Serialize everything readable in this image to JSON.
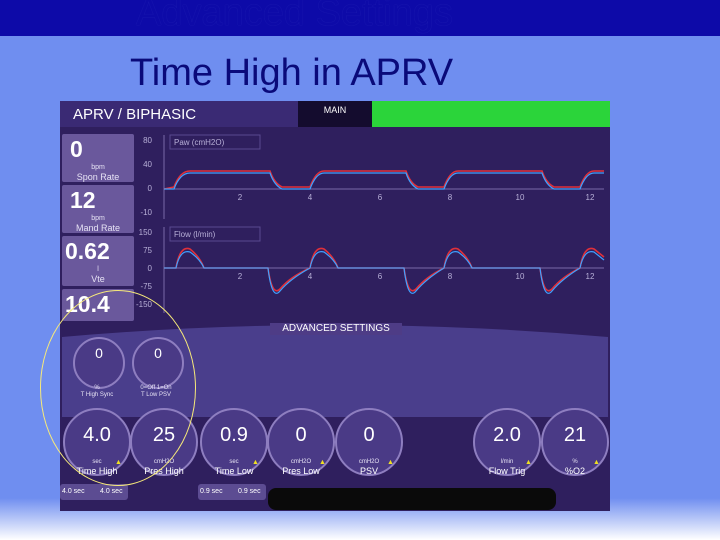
{
  "slide": {
    "title_line1": "Advanced Settings",
    "title_line2": "Time High in APRV"
  },
  "header": {
    "mode": "APRV / BIPHASIC",
    "main_button": "MAIN"
  },
  "monitors": [
    {
      "value": "0",
      "unit": "bpm",
      "label": "Spon Rate"
    },
    {
      "value": "12",
      "unit": "bpm",
      "label": "Mand Rate"
    },
    {
      "value": "0.62",
      "unit": "l",
      "label": "Vte"
    },
    {
      "value": "10.4",
      "unit": "",
      "label": ""
    }
  ],
  "paw_plot": {
    "label": "Paw (cmH2O)",
    "y_ticks": [
      "80",
      "40",
      "0",
      "-10"
    ],
    "x_ticks": [
      "2",
      "4",
      "6",
      "8",
      "10",
      "12"
    ]
  },
  "flow_plot": {
    "label": "Flow (l/min)",
    "y_ticks": [
      "150",
      "75",
      "0",
      "-75",
      "-150"
    ],
    "x_ticks": [
      "2",
      "4",
      "6",
      "8",
      "10",
      "12"
    ]
  },
  "advanced": {
    "title": "ADVANCED SETTINGS",
    "small_knobs": [
      {
        "value": "0",
        "label_line1": "%",
        "label_line2": "T High Sync"
      },
      {
        "value": "0",
        "label_line1": "0=Off 1=On",
        "label_line2": "T Low PSV"
      }
    ]
  },
  "knobs": [
    {
      "value": "4.0",
      "unit": "sec",
      "label": "Time High"
    },
    {
      "value": "25",
      "unit": "cmH2O",
      "label": "Pres High"
    },
    {
      "value": "0.9",
      "unit": "sec",
      "label": "Time Low"
    },
    {
      "value": "0",
      "unit": "cmH2O",
      "label": "Pres Low"
    },
    {
      "value": "0",
      "unit": "cmH2O",
      "label": "PSV"
    },
    {
      "value": "2.0",
      "unit": "l/min",
      "label": "Flow Trig"
    },
    {
      "value": "21",
      "unit": "%",
      "label": "%O2"
    }
  ],
  "timebars": {
    "time_high": [
      "4.0 sec",
      "4.0 sec"
    ],
    "time_low": [
      "0.9 sec",
      "0.9 sec"
    ]
  },
  "colors": {
    "screen_bg": "#2f1f5e",
    "green_status": "#2bd43a",
    "paw_trace": "#e0303a",
    "flow_trace": "#40a0ff"
  }
}
